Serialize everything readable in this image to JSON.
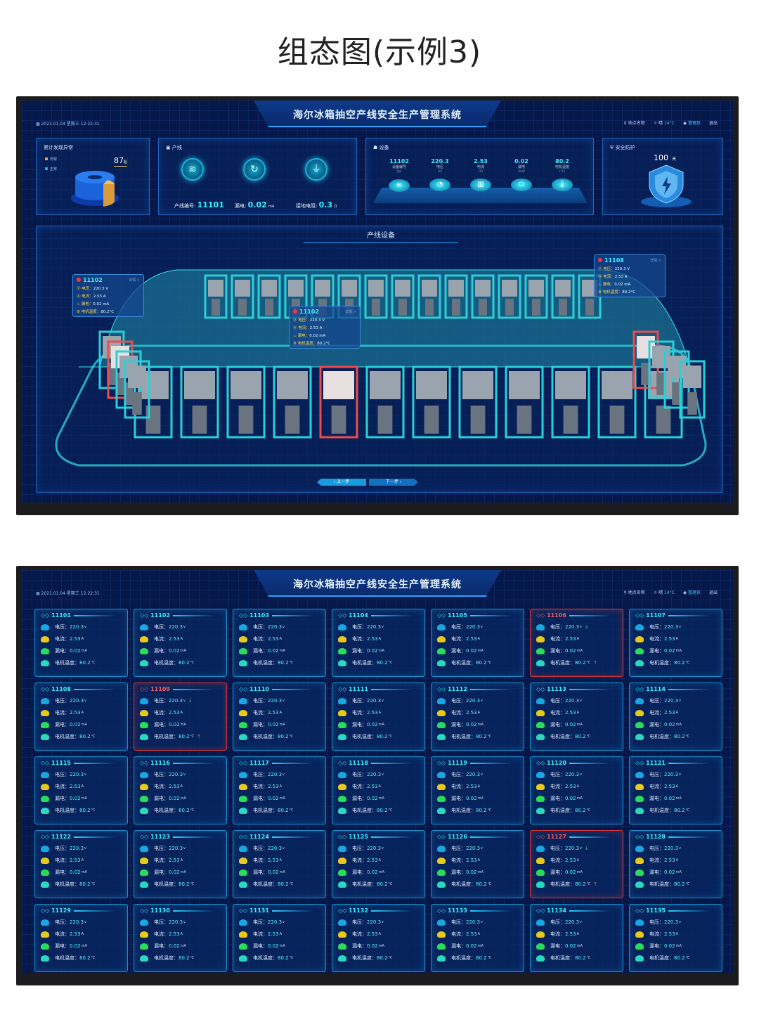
{
  "page_title": "组态图(示例3)",
  "header": {
    "title": "海尔冰箱抽空产线安全生产管理系统",
    "date": "2021.01.04",
    "weekday": "星期三",
    "time": "12:22:31",
    "location": "地点名称",
    "weather": "晴",
    "temperature": "14°C",
    "user": "管理员",
    "logout": "退出"
  },
  "colors": {
    "background": "#06184a",
    "accent": "#3ff0ff",
    "alert": "#d83a3a",
    "panel_border": "#1f64b8"
  },
  "anomaly": {
    "title": "累计发现异常",
    "count": "87",
    "count_unit": "起",
    "legend": [
      {
        "label": "异常",
        "color": "#e8a63a"
      },
      {
        "label": "正常",
        "color": "#1e6fe0"
      }
    ]
  },
  "line": {
    "title": "产线",
    "line_no_label": "产线编号:",
    "line_no": "11101",
    "leak_label": "漏电:",
    "leak": "0.02",
    "leak_unit": "mA",
    "ground_label": "接地电阻:",
    "ground": "0.3",
    "ground_unit": "Ω"
  },
  "device": {
    "title": "设备",
    "stats": [
      {
        "value": "11102",
        "label": "设备编号",
        "unit": "(台)",
        "icon": "layers-icon"
      },
      {
        "value": "220.3",
        "label": "电压",
        "unit": "(V)",
        "icon": "meter-icon"
      },
      {
        "value": "2.53",
        "label": "电流",
        "unit": "(A)",
        "icon": "chart-icon"
      },
      {
        "value": "0.02",
        "label": "漏电",
        "unit": "(mA)",
        "icon": "plug-icon"
      },
      {
        "value": "80.2",
        "label": "电机温度",
        "unit": "(°C)",
        "icon": "thermometer-icon"
      }
    ]
  },
  "safety": {
    "title": "安全防护",
    "days": "100",
    "days_unit": "天"
  },
  "main": {
    "title": "产线设备",
    "prev": "上一步",
    "next": "下一步",
    "tooltips": [
      {
        "id": "11102",
        "more": "详情 >",
        "voltage": "220.3 V",
        "current": "2.53 A",
        "leakage": "0.02 mA",
        "temp": "80.2°C"
      },
      {
        "id": "11102",
        "more": "详情 >",
        "voltage": "220.3 V",
        "current": "2.53 A",
        "leakage": "0.02 mA",
        "temp": "80.2°C"
      },
      {
        "id": "11108",
        "more": "详情 >",
        "voltage": "220.3 V",
        "current": "2.53 A",
        "leakage": "0.02 mA",
        "temp": "80.2°C"
      }
    ]
  },
  "labels": {
    "voltage": "电压：",
    "current": "电流：",
    "leakage": "漏电：",
    "temp": "电机温度："
  },
  "units": {
    "voltage": "v",
    "current": "A",
    "leakage": "mA",
    "temp": "℃"
  },
  "cards": [
    {
      "id": "11101",
      "voltage": "220.3",
      "current": "2.53",
      "leakage": "0.02",
      "temp": "80.2",
      "alert": false
    },
    {
      "id": "11102",
      "voltage": "220.3",
      "current": "2.53",
      "leakage": "0.02",
      "temp": "80.2",
      "alert": false
    },
    {
      "id": "11103",
      "voltage": "220.3",
      "current": "2.53",
      "leakage": "0.02",
      "temp": "80.2",
      "alert": false
    },
    {
      "id": "11104",
      "voltage": "220.3",
      "current": "2.53",
      "leakage": "0.02",
      "temp": "80.2",
      "alert": false
    },
    {
      "id": "11105",
      "voltage": "220.3",
      "current": "2.53",
      "leakage": "0.02",
      "temp": "80.2",
      "alert": false
    },
    {
      "id": "11106",
      "voltage": "220.3",
      "current": "2.53",
      "leakage": "0.02",
      "temp": "80.2",
      "alert": true
    },
    {
      "id": "11107",
      "voltage": "220.3",
      "current": "2.53",
      "leakage": "0.02",
      "temp": "80.2",
      "alert": false
    },
    {
      "id": "11108",
      "voltage": "220.3",
      "current": "2.53",
      "leakage": "0.02",
      "temp": "80.2",
      "alert": false
    },
    {
      "id": "11109",
      "voltage": "220.3",
      "current": "2.53",
      "leakage": "0.02",
      "temp": "80.2",
      "alert": true
    },
    {
      "id": "11110",
      "voltage": "220.3",
      "current": "2.53",
      "leakage": "0.02",
      "temp": "80.2",
      "alert": false
    },
    {
      "id": "11111",
      "voltage": "220.3",
      "current": "2.53",
      "leakage": "0.02",
      "temp": "80.2",
      "alert": false
    },
    {
      "id": "11112",
      "voltage": "220.3",
      "current": "2.53",
      "leakage": "0.02",
      "temp": "80.2",
      "alert": false
    },
    {
      "id": "11113",
      "voltage": "220.3",
      "current": "2.53",
      "leakage": "0.02",
      "temp": "80.2",
      "alert": false
    },
    {
      "id": "11114",
      "voltage": "220.3",
      "current": "2.53",
      "leakage": "0.02",
      "temp": "80.2",
      "alert": false
    },
    {
      "id": "11115",
      "voltage": "220.3",
      "current": "2.53",
      "leakage": "0.02",
      "temp": "80.2",
      "alert": false
    },
    {
      "id": "11116",
      "voltage": "220.3",
      "current": "2.53",
      "leakage": "0.02",
      "temp": "80.2",
      "alert": false
    },
    {
      "id": "11117",
      "voltage": "220.3",
      "current": "2.53",
      "leakage": "0.02",
      "temp": "80.2",
      "alert": false
    },
    {
      "id": "11118",
      "voltage": "220.3",
      "current": "2.53",
      "leakage": "0.02",
      "temp": "80.2",
      "alert": false
    },
    {
      "id": "11119",
      "voltage": "220.3",
      "current": "2.53",
      "leakage": "0.02",
      "temp": "80.2",
      "alert": false
    },
    {
      "id": "11120",
      "voltage": "220.3",
      "current": "2.53",
      "leakage": "0.02",
      "temp": "80.2",
      "alert": false
    },
    {
      "id": "11121",
      "voltage": "220.3",
      "current": "2.53",
      "leakage": "0.02",
      "temp": "80.2",
      "alert": false
    },
    {
      "id": "11122",
      "voltage": "220.3",
      "current": "2.53",
      "leakage": "0.02",
      "temp": "80.2",
      "alert": false
    },
    {
      "id": "11123",
      "voltage": "220.3",
      "current": "2.53",
      "leakage": "0.02",
      "temp": "80.2",
      "alert": false
    },
    {
      "id": "11124",
      "voltage": "220.3",
      "current": "2.53",
      "leakage": "0.02",
      "temp": "80.2",
      "alert": false
    },
    {
      "id": "11125",
      "voltage": "220.3",
      "current": "2.53",
      "leakage": "0.02",
      "temp": "80.2",
      "alert": false
    },
    {
      "id": "11126",
      "voltage": "220.3",
      "current": "2.53",
      "leakage": "0.02",
      "temp": "80.2",
      "alert": false
    },
    {
      "id": "11127",
      "voltage": "220.3",
      "current": "2.53",
      "leakage": "0.02",
      "temp": "80.2",
      "alert": true
    },
    {
      "id": "11128",
      "voltage": "220.3",
      "current": "2.53",
      "leakage": "0.02",
      "temp": "80.2",
      "alert": false
    },
    {
      "id": "11129",
      "voltage": "220.3",
      "current": "2.53",
      "leakage": "0.02",
      "temp": "80.2",
      "alert": false
    },
    {
      "id": "11130",
      "voltage": "220.3",
      "current": "2.53",
      "leakage": "0.02",
      "temp": "80.2",
      "alert": false
    },
    {
      "id": "11131",
      "voltage": "220.3",
      "current": "2.53",
      "leakage": "0.02",
      "temp": "80.2",
      "alert": false
    },
    {
      "id": "11132",
      "voltage": "220.3",
      "current": "2.53",
      "leakage": "0.02",
      "temp": "80.2",
      "alert": false
    },
    {
      "id": "11133",
      "voltage": "220.3",
      "current": "2.53",
      "leakage": "0.02",
      "temp": "80.2",
      "alert": false
    },
    {
      "id": "11134",
      "voltage": "220.3",
      "current": "2.53",
      "leakage": "0.02",
      "temp": "80.2",
      "alert": false
    },
    {
      "id": "11135",
      "voltage": "220.3",
      "current": "2.53",
      "leakage": "0.02",
      "temp": "80.2",
      "alert": false
    }
  ]
}
